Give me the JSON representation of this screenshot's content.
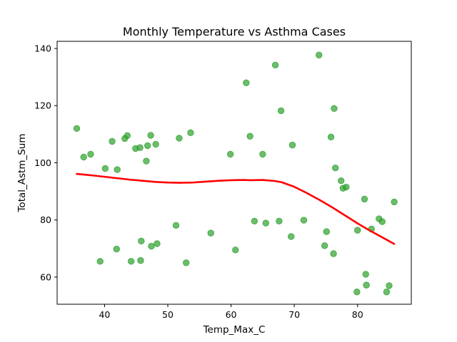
{
  "chart_data": {
    "type": "scatter",
    "title": "Monthly Temperature vs Asthma Cases",
    "xlabel": "Temp_Max_C",
    "ylabel": "Total_Astm_Sum",
    "xlim": [
      32.5,
      88.5
    ],
    "ylim": [
      50.5,
      142.5
    ],
    "xticks": [
      40,
      50,
      60,
      70,
      80
    ],
    "yticks": [
      60,
      80,
      100,
      120,
      140
    ],
    "grid": false,
    "colors": {
      "points": "#2ca02c",
      "trend": "#ff0000"
    },
    "points": [
      [
        35.6,
        112
      ],
      [
        36.7,
        102
      ],
      [
        37.8,
        103
      ],
      [
        39.3,
        65.5
      ],
      [
        40.1,
        98
      ],
      [
        41.2,
        107.5
      ],
      [
        41.9,
        69.8
      ],
      [
        42.0,
        97.6
      ],
      [
        43.2,
        108.5
      ],
      [
        43.6,
        109.5
      ],
      [
        44.2,
        65.5
      ],
      [
        44.9,
        105
      ],
      [
        45.6,
        105.3
      ],
      [
        45.7,
        65.8
      ],
      [
        45.8,
        72.6
      ],
      [
        46.6,
        100.6
      ],
      [
        46.8,
        106
      ],
      [
        47.3,
        109.6
      ],
      [
        47.4,
        70.8
      ],
      [
        48.1,
        106.5
      ],
      [
        48.3,
        71.7
      ],
      [
        51.3,
        78.1
      ],
      [
        51.8,
        108.6
      ],
      [
        52.9,
        65
      ],
      [
        53.6,
        110.5
      ],
      [
        56.8,
        75.4
      ],
      [
        59.9,
        103
      ],
      [
        60.7,
        69.5
      ],
      [
        62.4,
        128
      ],
      [
        63.0,
        109.3
      ],
      [
        63.7,
        79.6
      ],
      [
        65.0,
        103
      ],
      [
        65.5,
        78.9
      ],
      [
        67.0,
        134.2
      ],
      [
        67.6,
        79.6
      ],
      [
        67.9,
        118.2
      ],
      [
        69.5,
        74.2
      ],
      [
        69.7,
        106.2
      ],
      [
        71.5,
        79.9
      ],
      [
        73.9,
        137.7
      ],
      [
        74.8,
        71
      ],
      [
        75.1,
        75.9
      ],
      [
        75.8,
        109
      ],
      [
        76.2,
        68.2
      ],
      [
        76.3,
        119
      ],
      [
        76.5,
        98.2
      ],
      [
        77.4,
        93.7
      ],
      [
        77.7,
        91.1
      ],
      [
        78.2,
        91.5
      ],
      [
        79.9,
        54.8
      ],
      [
        80.0,
        76.4
      ],
      [
        81.1,
        87.3
      ],
      [
        81.3,
        61
      ],
      [
        81.4,
        57.2
      ],
      [
        82.2,
        76.8
      ],
      [
        83.4,
        80.4
      ],
      [
        83.9,
        79.4
      ],
      [
        84.6,
        54.8
      ],
      [
        85.0,
        57
      ],
      [
        85.8,
        86.3
      ]
    ],
    "trend": [
      [
        35.6,
        96.1
      ],
      [
        38,
        95.6
      ],
      [
        40,
        95.1
      ],
      [
        42,
        94.6
      ],
      [
        44,
        94.1
      ],
      [
        46,
        93.7
      ],
      [
        48,
        93.3
      ],
      [
        50,
        93.1
      ],
      [
        52,
        93.0
      ],
      [
        54,
        93.1
      ],
      [
        56,
        93.4
      ],
      [
        58,
        93.7
      ],
      [
        60,
        93.9
      ],
      [
        62,
        94.0
      ],
      [
        63,
        93.9
      ],
      [
        65,
        94.0
      ],
      [
        67,
        93.6
      ],
      [
        68,
        93.2
      ],
      [
        70,
        91.6
      ],
      [
        72,
        89.4
      ],
      [
        74,
        87.0
      ],
      [
        76,
        84.4
      ],
      [
        78,
        81.6
      ],
      [
        80,
        78.8
      ],
      [
        82,
        76.2
      ],
      [
        84,
        73.8
      ],
      [
        85.8,
        71.6
      ]
    ]
  }
}
